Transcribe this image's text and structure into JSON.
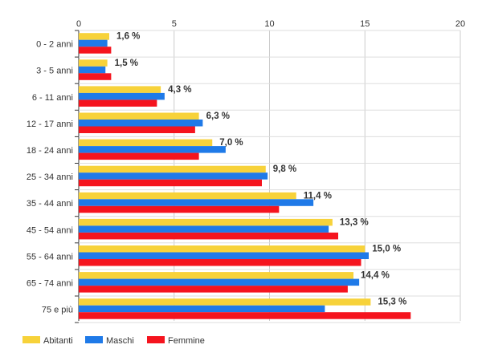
{
  "chart_data": {
    "type": "bar",
    "orientation": "horizontal",
    "categories": [
      "0 - 2 anni",
      "3 - 5 anni",
      "6 - 11 anni",
      "12 - 17 anni",
      "18 - 24 anni",
      "25 - 34 anni",
      "35 - 44 anni",
      "45 - 54 anni",
      "55 - 64 anni",
      "65 - 74 anni",
      "75 e più"
    ],
    "series": [
      {
        "name": "Abitanti",
        "color": "#f7d23a",
        "values": [
          1.6,
          1.5,
          4.3,
          6.3,
          7.0,
          9.8,
          11.4,
          13.3,
          15.0,
          14.4,
          15.3
        ]
      },
      {
        "name": "Maschi",
        "color": "#1f7ae8",
        "values": [
          1.5,
          1.4,
          4.5,
          6.5,
          7.7,
          9.9,
          12.3,
          13.1,
          15.2,
          14.7,
          12.9
        ]
      },
      {
        "name": "Femmine",
        "color": "#f5141e",
        "values": [
          1.7,
          1.7,
          4.1,
          6.1,
          6.3,
          9.6,
          10.5,
          13.6,
          14.8,
          14.1,
          17.4
        ]
      }
    ],
    "data_labels": [
      "1,6 %",
      "1,5 %",
      "4,3 %",
      "6,3 %",
      "7,0 %",
      "9,8 %",
      "11,4 %",
      "13,3 %",
      "15,0 %",
      "14,4 %",
      "15,3 %"
    ],
    "x_ticks": [
      0,
      5,
      10,
      15,
      20
    ],
    "xlim": [
      0,
      20
    ],
    "grid": true,
    "legend_position": "bottom-left"
  }
}
